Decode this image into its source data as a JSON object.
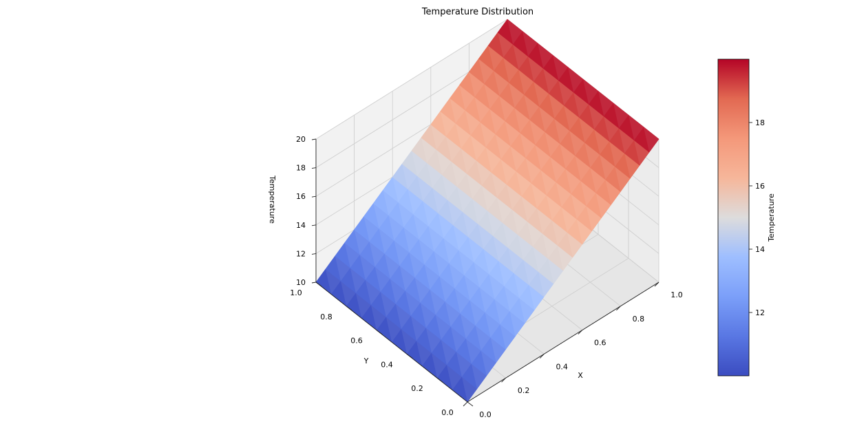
{
  "chart_data": {
    "type": "surface",
    "title": "Temperature Distribution",
    "xlabel": "X",
    "ylabel": "Y",
    "zlabel": "Temperature",
    "colorbar_label": "Temperature",
    "colormap": "coolwarm",
    "xlim": [
      0,
      1
    ],
    "ylim": [
      0,
      1
    ],
    "zlim": [
      10,
      20
    ],
    "x_ticks": [
      "0.0",
      "0.2",
      "0.4",
      "0.6",
      "0.8",
      "1.0"
    ],
    "y_ticks": [
      "0.0",
      "0.2",
      "0.4",
      "0.6",
      "0.8",
      "1.0"
    ],
    "z_ticks": [
      "10",
      "12",
      "14",
      "16",
      "18",
      "20"
    ],
    "colorbar_ticks": [
      "12",
      "14",
      "16",
      "18"
    ],
    "colorbar_range": [
      10,
      20
    ],
    "grid": true,
    "grid_size": [
      21,
      11
    ],
    "surface": {
      "description_formula": "T = 10 + 10 * x",
      "x_min": 0,
      "x_max": 1,
      "y_min": 0,
      "y_max": 1,
      "z_at_x0": 10,
      "z_at_x1": 20
    }
  }
}
